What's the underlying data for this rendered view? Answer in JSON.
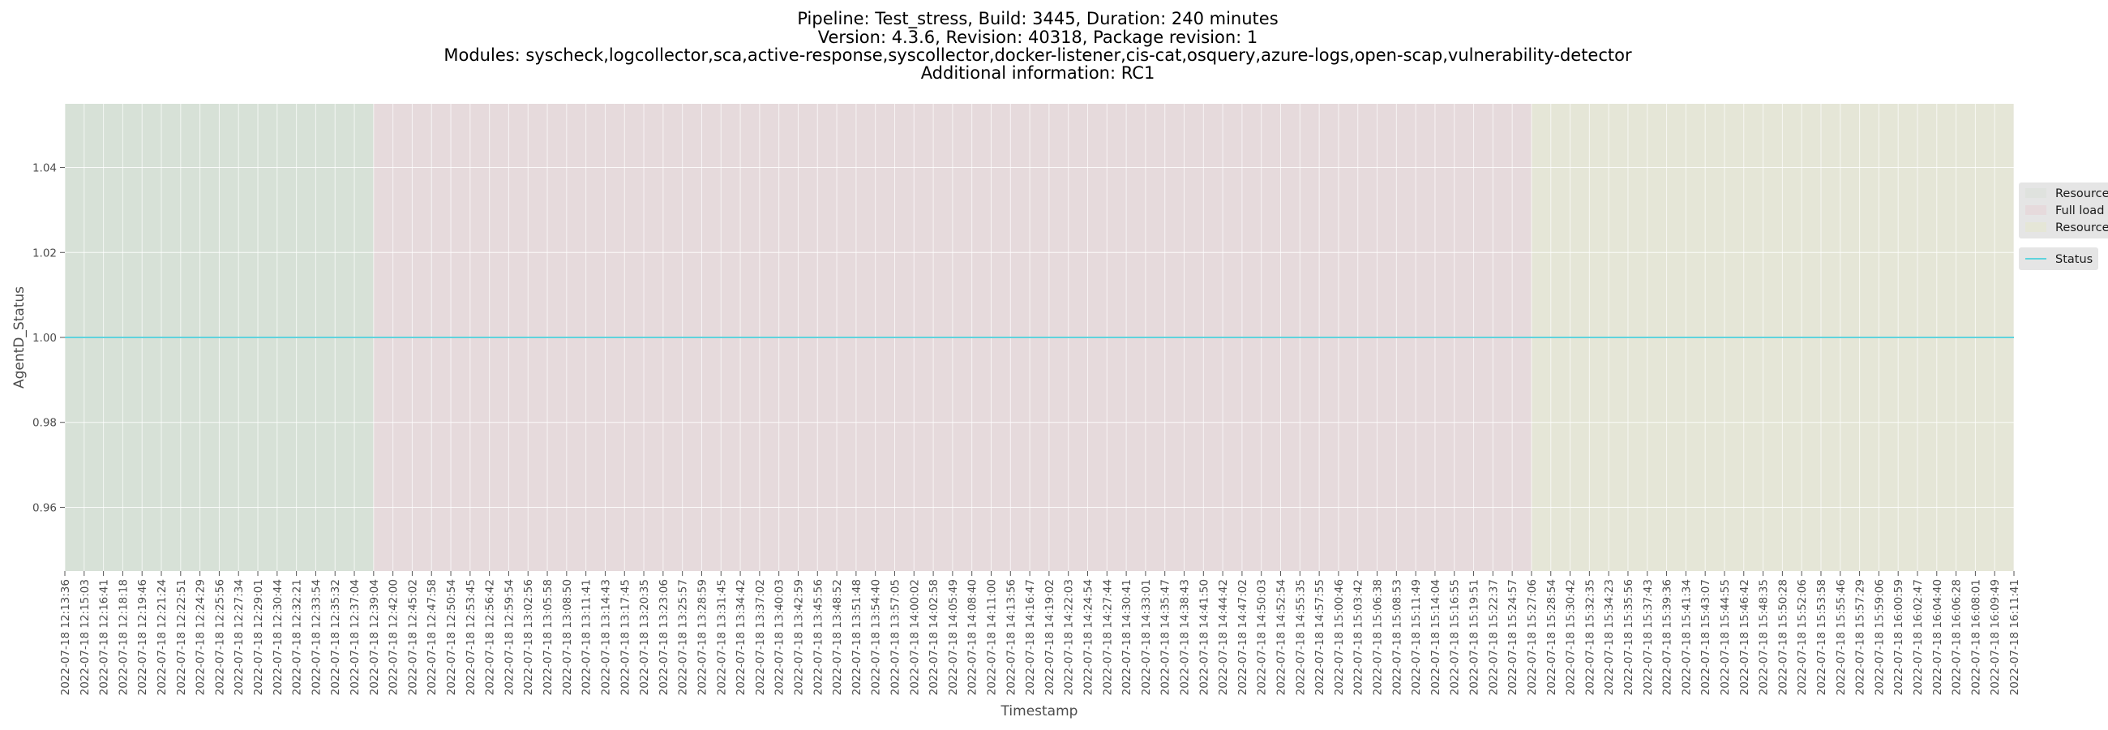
{
  "chart_data": {
    "type": "line",
    "title": [
      "Pipeline: Test_stress, Build: 3445, Duration: 240 minutes",
      "Version: 4.3.6, Revision: 40318, Package revision: 1",
      "Modules: syscheck,logcollector,sca,active-response,syscollector,docker-listener,cis-cat,osquery,azure-logs,open-scap,vulnerability-detector",
      "Additional information: RC1"
    ],
    "xlabel": "Timestamp",
    "ylabel": "AgentD_Status",
    "ylim": [
      0.945,
      1.055
    ],
    "yticks": [
      "0.96",
      "0.98",
      "1.00",
      "1.02",
      "1.04"
    ],
    "grid": true,
    "legend_placement": "right",
    "x": [
      "2022-07-18 12:13:36",
      "2022-07-18 12:15:03",
      "2022-07-18 12:16:41",
      "2022-07-18 12:18:18",
      "2022-07-18 12:19:46",
      "2022-07-18 12:21:24",
      "2022-07-18 12:22:51",
      "2022-07-18 12:24:29",
      "2022-07-18 12:25:56",
      "2022-07-18 12:27:34",
      "2022-07-18 12:29:01",
      "2022-07-18 12:30:44",
      "2022-07-18 12:32:21",
      "2022-07-18 12:33:54",
      "2022-07-18 12:35:32",
      "2022-07-18 12:37:04",
      "2022-07-18 12:39:04",
      "2022-07-18 12:42:00",
      "2022-07-18 12:45:02",
      "2022-07-18 12:47:58",
      "2022-07-18 12:50:54",
      "2022-07-18 12:53:45",
      "2022-07-18 12:56:42",
      "2022-07-18 12:59:54",
      "2022-07-18 13:02:56",
      "2022-07-18 13:05:58",
      "2022-07-18 13:08:50",
      "2022-07-18 13:11:41",
      "2022-07-18 13:14:43",
      "2022-07-18 13:17:45",
      "2022-07-18 13:20:35",
      "2022-07-18 13:23:06",
      "2022-07-18 13:25:57",
      "2022-07-18 13:28:59",
      "2022-07-18 13:31:45",
      "2022-07-18 13:34:42",
      "2022-07-18 13:37:02",
      "2022-07-18 13:40:03",
      "2022-07-18 13:42:59",
      "2022-07-18 13:45:56",
      "2022-07-18 13:48:52",
      "2022-07-18 13:51:48",
      "2022-07-18 13:54:40",
      "2022-07-18 13:57:05",
      "2022-07-18 14:00:02",
      "2022-07-18 14:02:58",
      "2022-07-18 14:05:49",
      "2022-07-18 14:08:40",
      "2022-07-18 14:11:00",
      "2022-07-18 14:13:56",
      "2022-07-18 14:16:47",
      "2022-07-18 14:19:02",
      "2022-07-18 14:22:03",
      "2022-07-18 14:24:54",
      "2022-07-18 14:27:44",
      "2022-07-18 14:30:41",
      "2022-07-18 14:33:01",
      "2022-07-18 14:35:47",
      "2022-07-18 14:38:43",
      "2022-07-18 14:41:50",
      "2022-07-18 14:44:42",
      "2022-07-18 14:47:02",
      "2022-07-18 14:50:03",
      "2022-07-18 14:52:54",
      "2022-07-18 14:55:35",
      "2022-07-18 14:57:55",
      "2022-07-18 15:00:46",
      "2022-07-18 15:03:42",
      "2022-07-18 15:06:38",
      "2022-07-18 15:08:53",
      "2022-07-18 15:11:49",
      "2022-07-18 15:14:04",
      "2022-07-18 15:16:55",
      "2022-07-18 15:19:51",
      "2022-07-18 15:22:37",
      "2022-07-18 15:24:57",
      "2022-07-18 15:27:06",
      "2022-07-18 15:28:54",
      "2022-07-18 15:30:42",
      "2022-07-18 15:32:35",
      "2022-07-18 15:34:23",
      "2022-07-18 15:35:56",
      "2022-07-18 15:37:43",
      "2022-07-18 15:39:36",
      "2022-07-18 15:41:34",
      "2022-07-18 15:43:07",
      "2022-07-18 15:44:55",
      "2022-07-18 15:46:42",
      "2022-07-18 15:48:35",
      "2022-07-18 15:50:28",
      "2022-07-18 15:52:06",
      "2022-07-18 15:53:58",
      "2022-07-18 15:55:46",
      "2022-07-18 15:57:29",
      "2022-07-18 15:59:06",
      "2022-07-18 16:00:59",
      "2022-07-18 16:02:47",
      "2022-07-18 16:04:40",
      "2022-07-18 16:06:28",
      "2022-07-18 16:08:01",
      "2022-07-18 16:09:49",
      "2022-07-18 16:11:41"
    ],
    "series": [
      {
        "name": "Status",
        "value": 1.0,
        "color": "#5fd3dd"
      }
    ],
    "phases": [
      {
        "name": "Resource",
        "start": "2022-07-18 12:13:36",
        "end": "2022-07-18 12:39:04",
        "color": "#d7e1d7"
      },
      {
        "name": "Full load",
        "start": "2022-07-18 12:39:04",
        "end": "2022-07-18 15:27:06",
        "color": "#e6dadc"
      },
      {
        "name": "Resource",
        "start": "2022-07-18 15:27:06",
        "end": "2022-07-18 16:11:41",
        "color": "#e5e6d7"
      }
    ]
  }
}
